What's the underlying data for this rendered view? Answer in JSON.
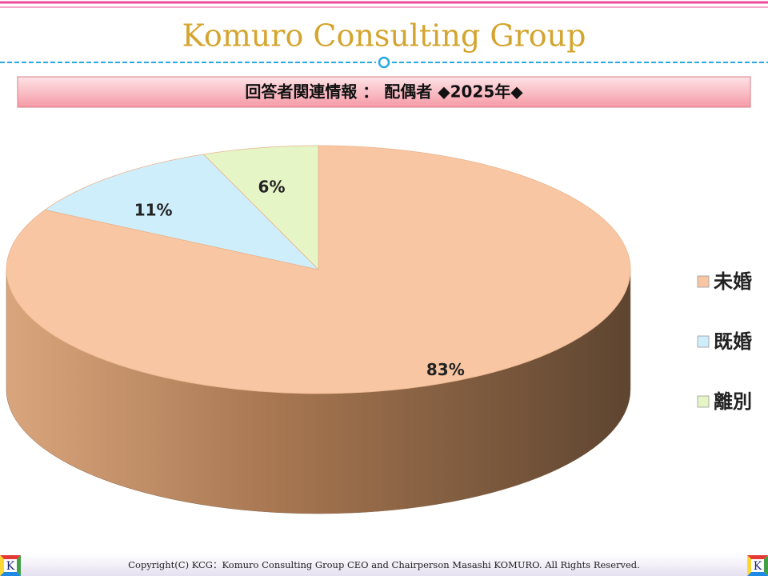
{
  "header": {
    "title": "Komuro Consulting Group"
  },
  "chart_data": {
    "type": "pie",
    "title": "回答者関連情報 ： 配偶者 ◆2025年◆",
    "categories": [
      "未婚",
      "既婚",
      "離別"
    ],
    "values": [
      83,
      11,
      6
    ],
    "value_labels": [
      "83%",
      "11%",
      "6%"
    ],
    "colors": [
      "#f8c6a2",
      "#cfeefb",
      "#e5f5c6"
    ],
    "legend": "right"
  },
  "footer": {
    "copyright": "Copyright(C) KCG：Komuro Consulting Group CEO and Chairperson Masashi KOMURO. All Rights Reserved.",
    "logo_left": "K",
    "logo_right": "K"
  }
}
